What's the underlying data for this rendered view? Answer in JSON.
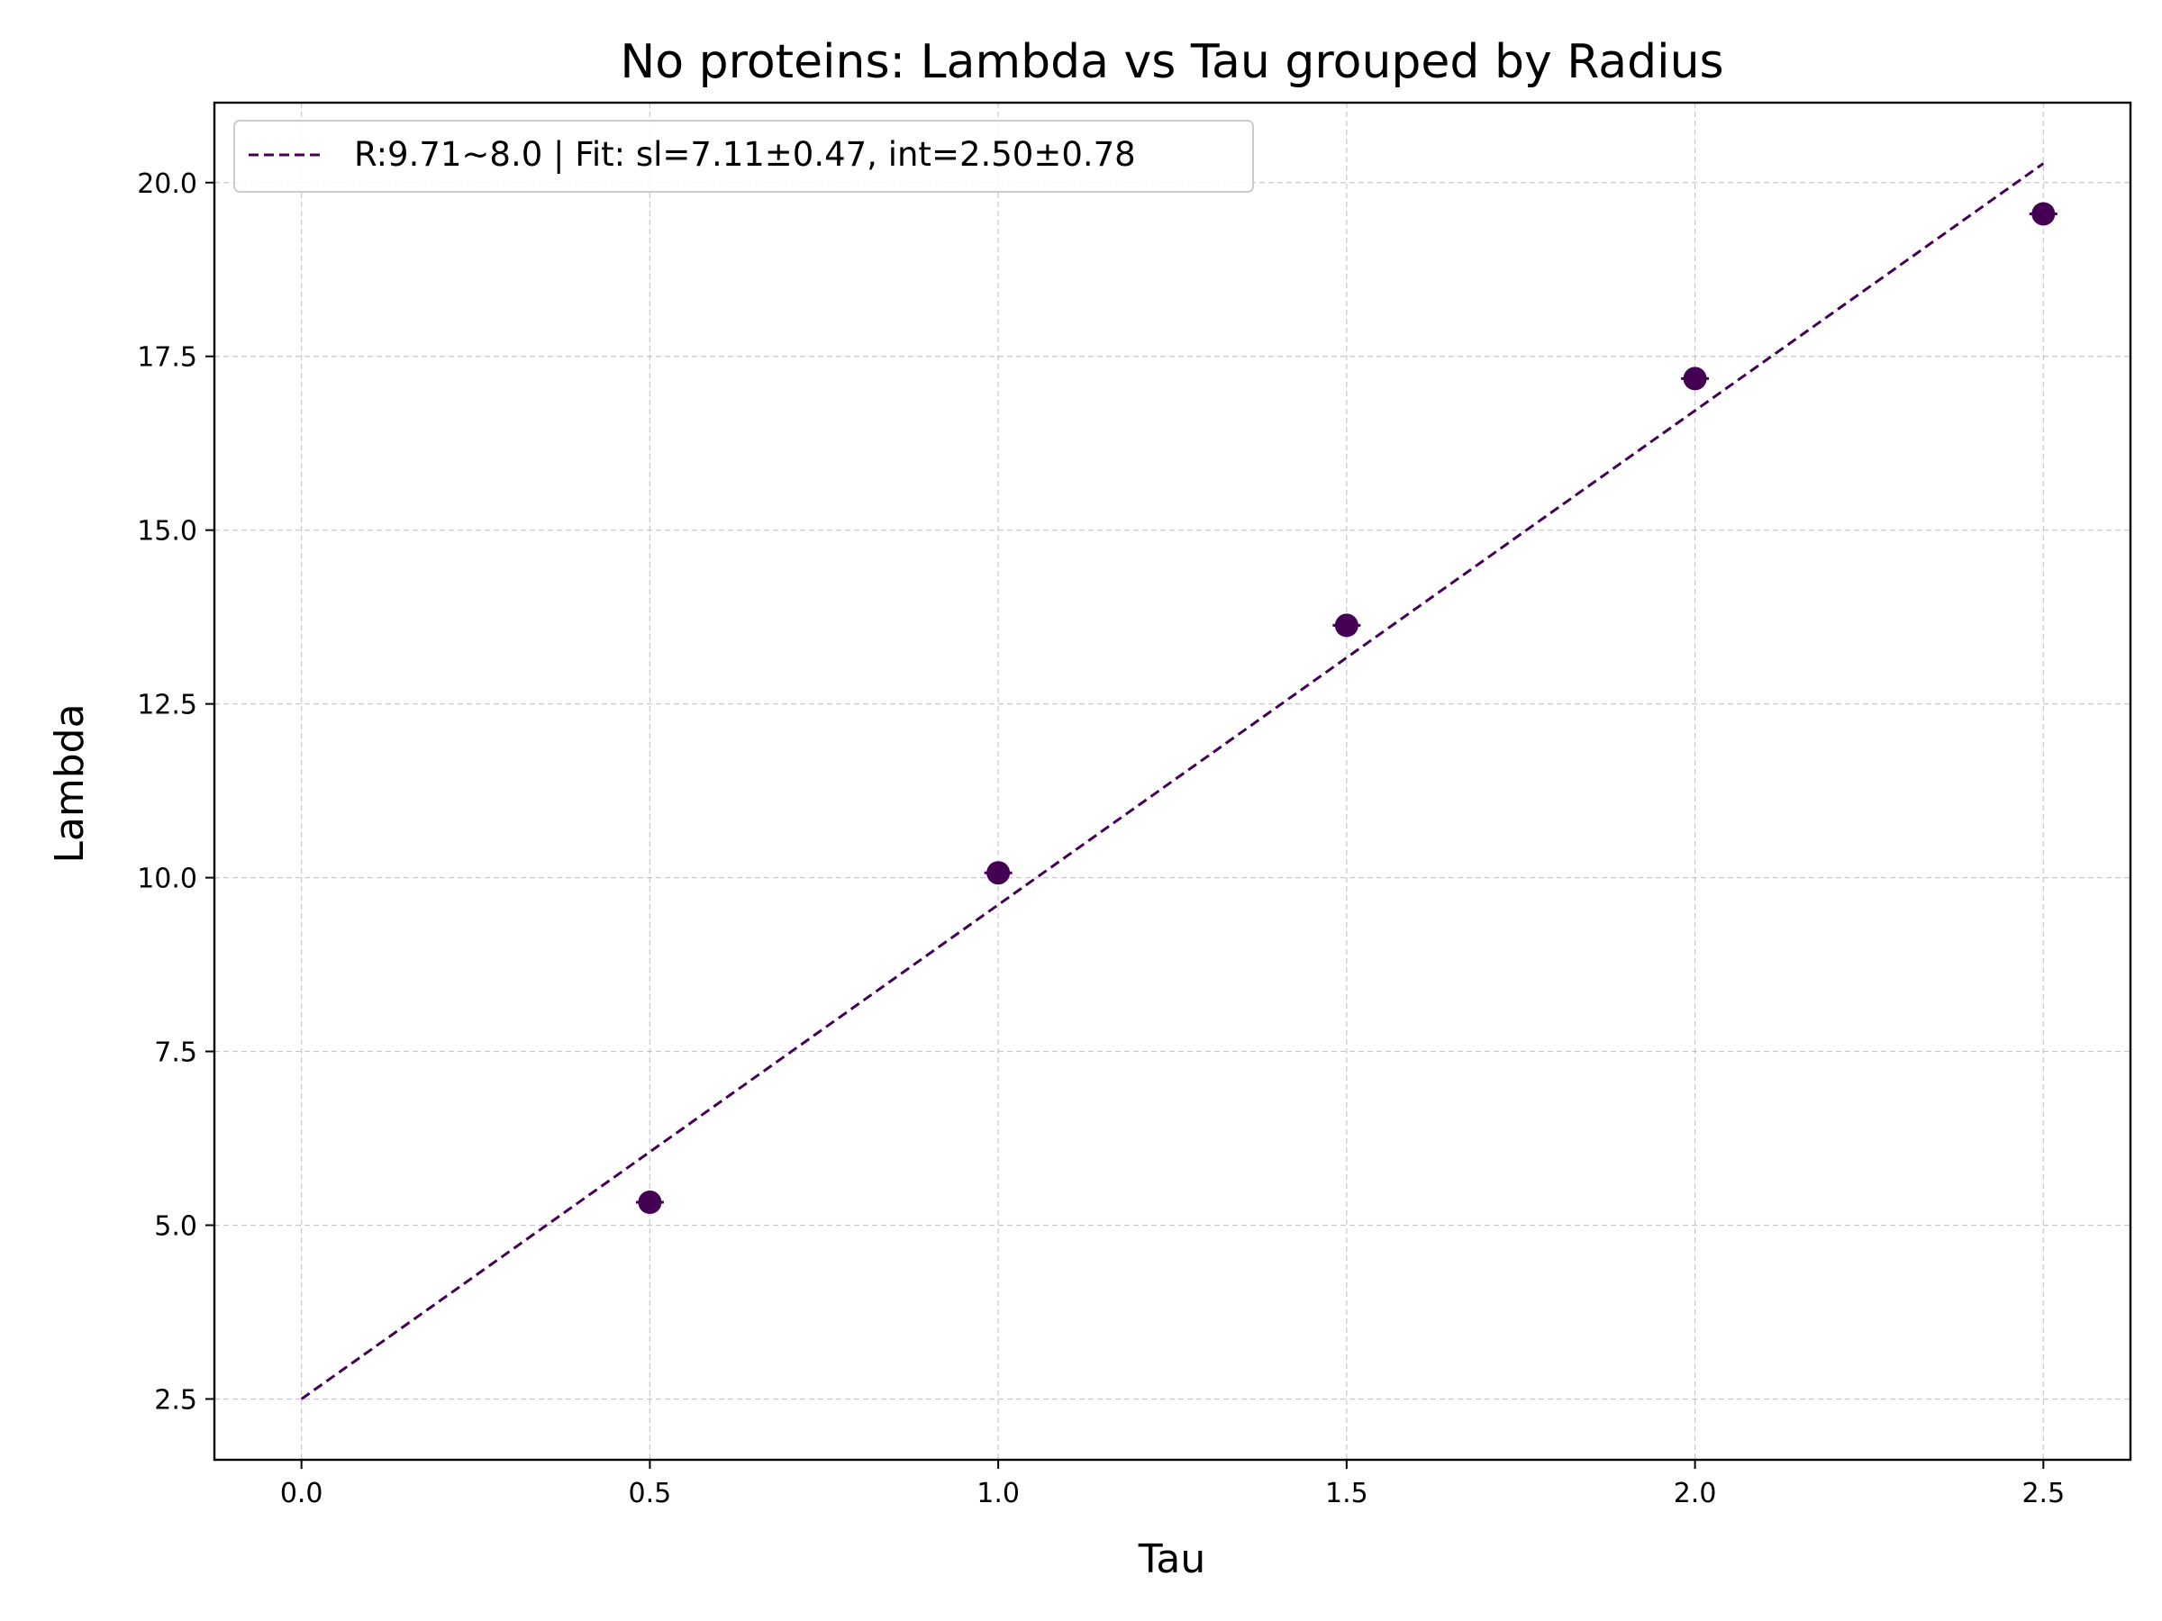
{
  "chart_data": {
    "type": "scatter",
    "title": "No proteins: Lambda vs Tau grouped by Radius",
    "xlabel": "Tau",
    "ylabel": "Lambda",
    "xlim": [
      -0.125,
      2.625
    ],
    "ylim": [
      1.625,
      21.15
    ],
    "xticks": [
      0.0,
      0.5,
      1.0,
      1.5,
      2.0,
      2.5
    ],
    "xtick_labels": [
      "0.0",
      "0.5",
      "1.0",
      "1.5",
      "2.0",
      "2.5"
    ],
    "yticks": [
      2.5,
      5.0,
      7.5,
      10.0,
      12.5,
      15.0,
      17.5,
      20.0
    ],
    "ytick_labels": [
      "2.5",
      "5.0",
      "7.5",
      "10.0",
      "12.5",
      "15.0",
      "17.5",
      "20.0"
    ],
    "grid": true,
    "legend_position": "top-left",
    "series": [
      {
        "name": "R:9.71~8.0 | Fit: sl=7.11±0.47, int=2.50±0.78",
        "color": "#440154",
        "points": [
          {
            "x": 0.5,
            "y": 5.33,
            "xerr": 0.02
          },
          {
            "x": 1.0,
            "y": 10.07,
            "xerr": 0.02
          },
          {
            "x": 1.5,
            "y": 13.63,
            "xerr": 0.02
          },
          {
            "x": 2.0,
            "y": 17.18,
            "xerr": 0.02
          },
          {
            "x": 2.5,
            "y": 19.55,
            "xerr": 0.02
          }
        ],
        "fit": {
          "slope": 7.11,
          "intercept": 2.5,
          "x_range": [
            0.0,
            2.5
          ],
          "style": "dashed"
        }
      }
    ]
  }
}
